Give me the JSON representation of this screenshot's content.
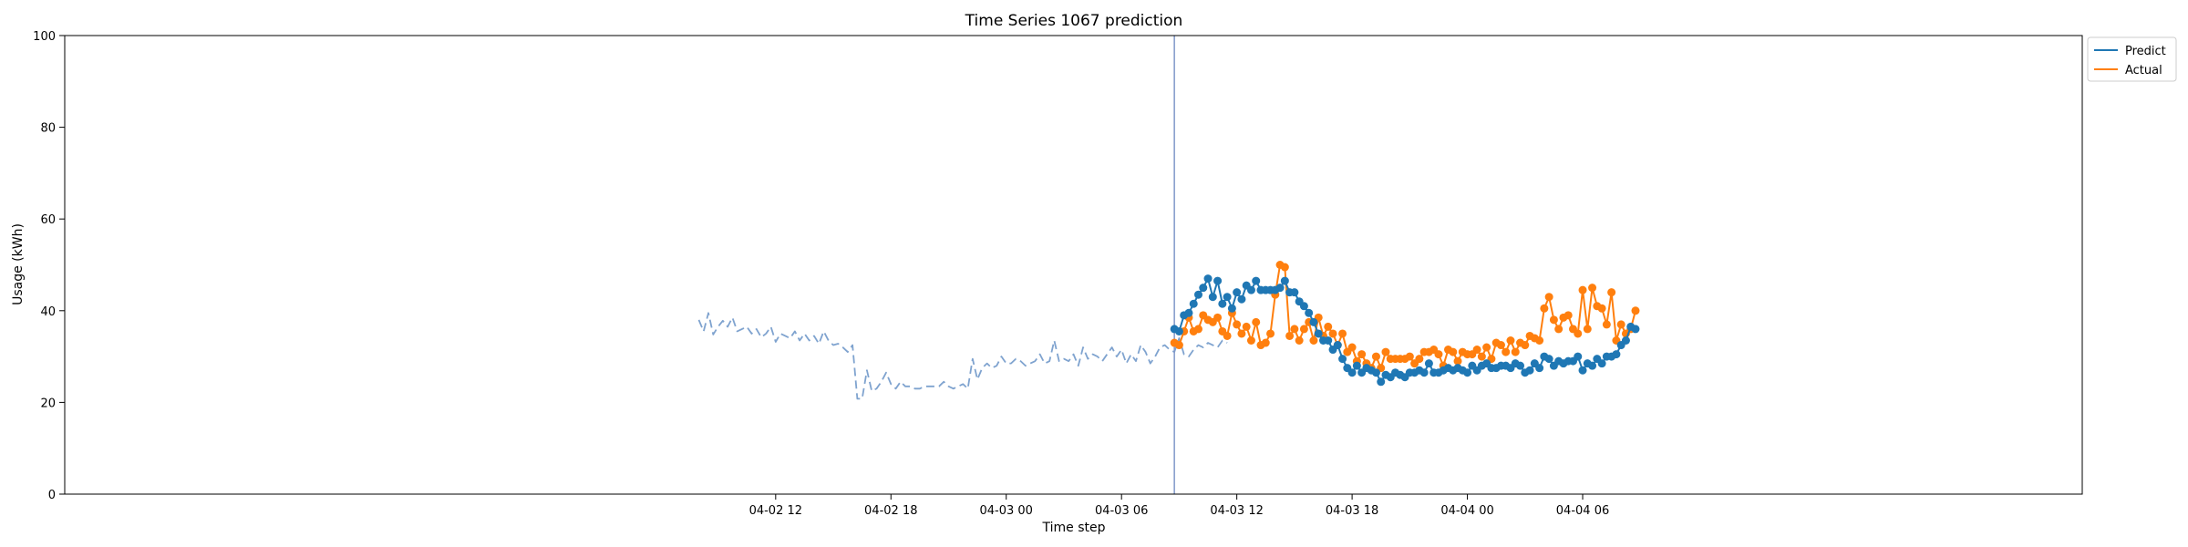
{
  "chart_data": {
    "type": "line",
    "title": "Time Series 1067 prediction",
    "xlabel": "Time step",
    "ylabel": "Usage (kWh)",
    "ylim": [
      0,
      100
    ],
    "y_ticks": [
      0,
      20,
      40,
      60,
      80,
      100
    ],
    "x_range_hours": [
      -25,
      80
    ],
    "x_ticks": [
      {
        "hour": 12,
        "label": "04-02 12"
      },
      {
        "hour": 18,
        "label": "04-02 18"
      },
      {
        "hour": 24,
        "label": "04-03 00"
      },
      {
        "hour": 30,
        "label": "04-03 06"
      },
      {
        "hour": 36,
        "label": "04-03 12"
      },
      {
        "hour": 42,
        "label": "04-03 18"
      },
      {
        "hour": 48,
        "label": "04-04 00"
      },
      {
        "hour": 54,
        "label": "04-04 06"
      }
    ],
    "x_start": "04-02 08:00",
    "x_step_minutes": 15,
    "forecast_start": "04-03 08:45",
    "history": [
      38.0,
      35.5,
      39.5,
      34.8,
      36.5,
      37.8,
      36.5,
      38.5,
      35.5,
      36.0,
      36.5,
      35.0,
      36.0,
      34.2,
      35.0,
      36.5,
      33.2,
      35.0,
      34.5,
      34.0,
      35.5,
      33.5,
      35.0,
      33.5,
      34.5,
      32.8,
      35.5,
      33.5,
      32.5,
      32.8,
      32.0,
      31.0,
      32.5,
      20.8,
      20.8,
      27.0,
      22.5,
      23.0,
      24.5,
      26.5,
      24.0,
      23.0,
      24.5,
      23.5,
      23.5,
      23.0,
      23.0,
      23.5,
      23.5,
      23.5,
      23.5,
      24.5,
      23.5,
      23.0,
      23.5,
      24.0,
      23.0,
      29.5,
      25.0,
      27.5,
      28.5,
      27.5,
      28.0,
      30.0,
      28.5,
      28.5,
      29.5,
      29.0,
      28.0,
      28.5,
      29.0,
      30.5,
      28.5,
      29.0,
      33.5,
      29.0,
      29.5,
      29.0,
      30.5,
      28.0,
      32.0,
      29.5,
      30.5,
      30.0,
      29.0,
      30.5,
      32.0,
      30.0,
      31.5,
      28.5,
      30.5,
      29.0,
      32.5,
      31.0,
      28.5,
      30.0,
      32.0,
      32.5,
      31.5,
      31.0,
      34.0,
      30.5,
      30.0,
      31.5,
      32.5,
      32.0,
      33.0,
      32.5,
      32.0,
      33.5,
      33.0
    ],
    "series": [
      {
        "name": "Predict",
        "color": "#1f77b4",
        "values": [
          36.0,
          35.5,
          39.0,
          39.5,
          41.5,
          43.5,
          45.0,
          47.0,
          43.0,
          46.5,
          41.5,
          43.0,
          40.5,
          44.0,
          42.5,
          45.5,
          44.5,
          46.5,
          44.5,
          44.5,
          44.5,
          44.5,
          45.0,
          46.5,
          44.0,
          44.0,
          42.0,
          41.0,
          39.5,
          37.5,
          35.0,
          33.5,
          33.5,
          31.5,
          32.5,
          29.5,
          27.5,
          26.5,
          28.0,
          26.5,
          27.5,
          27.0,
          26.5,
          24.5,
          26.0,
          25.5,
          26.5,
          26.0,
          25.5,
          26.5,
          26.5,
          27.0,
          26.5,
          28.5,
          26.5,
          26.5,
          27.0,
          27.5,
          27.0,
          27.5,
          27.0,
          26.5,
          28.0,
          27.0,
          28.0,
          28.5,
          27.5,
          27.5,
          28.0,
          28.0,
          27.5,
          28.5,
          28.0,
          26.5,
          27.0,
          28.5,
          27.5,
          30.0,
          29.5,
          28.0,
          29.0,
          28.5,
          29.0,
          29.0,
          30.0,
          27.0,
          28.5,
          28.0,
          29.5,
          28.5,
          30.0,
          30.0,
          30.5,
          32.5,
          33.5,
          36.5,
          36.0
        ]
      },
      {
        "name": "Actual",
        "color": "#ff7f0e",
        "values": [
          33.0,
          32.5,
          35.5,
          38.5,
          35.5,
          36.0,
          39.0,
          38.0,
          37.5,
          38.5,
          35.5,
          34.5,
          39.5,
          37.0,
          35.0,
          36.5,
          33.5,
          37.5,
          32.5,
          33.0,
          35.0,
          43.5,
          50.0,
          49.5,
          34.5,
          36.0,
          33.5,
          36.0,
          37.5,
          33.5,
          38.5,
          34.5,
          36.5,
          35.0,
          32.5,
          35.0,
          31.0,
          32.0,
          29.0,
          30.5,
          28.5,
          27.5,
          30.0,
          27.5,
          31.0,
          29.5,
          29.5,
          29.5,
          29.5,
          30.0,
          28.5,
          29.5,
          31.0,
          31.0,
          31.5,
          30.5,
          28.0,
          31.5,
          31.0,
          29.0,
          31.0,
          30.5,
          30.5,
          31.5,
          30.0,
          32.0,
          29.5,
          33.0,
          32.5,
          31.0,
          33.5,
          31.0,
          33.0,
          32.5,
          34.5,
          34.0,
          33.5,
          40.5,
          43.0,
          38.0,
          36.0,
          38.5,
          39.0,
          36.0,
          35.0,
          44.5,
          36.0,
          45.0,
          41.0,
          40.5,
          37.0,
          44.0,
          33.5,
          37.0,
          35.0,
          36.0,
          40.0
        ]
      }
    ],
    "legend": {
      "position": "upper right outside",
      "entries": [
        {
          "label": "Predict",
          "color": "#1f77b4"
        },
        {
          "label": "Actual",
          "color": "#ff7f0e"
        }
      ]
    },
    "history_color": "#7fa3cf",
    "divider_color": "#8097c9"
  }
}
